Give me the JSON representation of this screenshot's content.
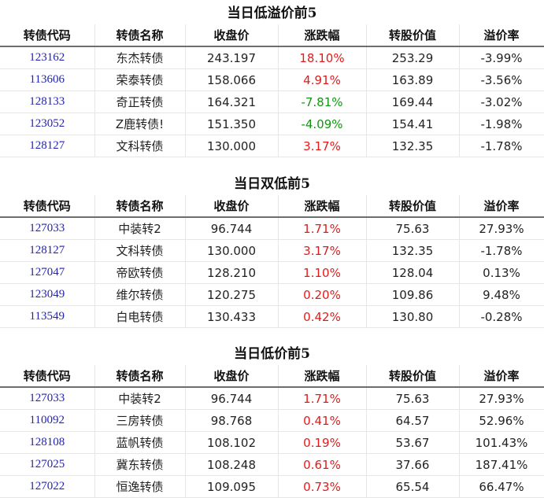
{
  "columns": [
    "转债代码",
    "转债名称",
    "收盘价",
    "涨跌幅",
    "转股价值",
    "溢价率"
  ],
  "sections": [
    {
      "title": "当日低溢价前5",
      "rows": [
        {
          "code": "123162",
          "name": "东杰转债",
          "close": "243.197",
          "change": "18.10%",
          "dir": "up",
          "conv_value": "253.29",
          "premium": "-3.99%"
        },
        {
          "code": "113606",
          "name": "荣泰转债",
          "close": "158.066",
          "change": "4.91%",
          "dir": "up",
          "conv_value": "163.89",
          "premium": "-3.56%"
        },
        {
          "code": "128133",
          "name": "奇正转债",
          "close": "164.321",
          "change": "-7.81%",
          "dir": "down",
          "conv_value": "169.44",
          "premium": "-3.02%"
        },
        {
          "code": "123052",
          "name": "Z鹿转债!",
          "close": "151.350",
          "change": "-4.09%",
          "dir": "down",
          "conv_value": "154.41",
          "premium": "-1.98%"
        },
        {
          "code": "128127",
          "name": "文科转债",
          "close": "130.000",
          "change": "3.17%",
          "dir": "up",
          "conv_value": "132.35",
          "premium": "-1.78%"
        }
      ]
    },
    {
      "title": "当日双低前5",
      "rows": [
        {
          "code": "127033",
          "name": "中装转2",
          "close": "96.744",
          "change": "1.71%",
          "dir": "up",
          "conv_value": "75.63",
          "premium": "27.93%"
        },
        {
          "code": "128127",
          "name": "文科转债",
          "close": "130.000",
          "change": "3.17%",
          "dir": "up",
          "conv_value": "132.35",
          "premium": "-1.78%"
        },
        {
          "code": "127047",
          "name": "帝欧转债",
          "close": "128.210",
          "change": "1.10%",
          "dir": "up",
          "conv_value": "128.04",
          "premium": "0.13%"
        },
        {
          "code": "123049",
          "name": "维尔转债",
          "close": "120.275",
          "change": "0.20%",
          "dir": "up",
          "conv_value": "109.86",
          "premium": "9.48%"
        },
        {
          "code": "113549",
          "name": "白电转债",
          "close": "130.433",
          "change": "0.42%",
          "dir": "up",
          "conv_value": "130.80",
          "premium": "-0.28%"
        }
      ]
    },
    {
      "title": "当日低价前5",
      "rows": [
        {
          "code": "127033",
          "name": "中装转2",
          "close": "96.744",
          "change": "1.71%",
          "dir": "up",
          "conv_value": "75.63",
          "premium": "27.93%"
        },
        {
          "code": "110092",
          "name": "三房转债",
          "close": "98.768",
          "change": "0.41%",
          "dir": "up",
          "conv_value": "64.57",
          "premium": "52.96%"
        },
        {
          "code": "128108",
          "name": "蓝帆转债",
          "close": "108.102",
          "change": "0.19%",
          "dir": "up",
          "conv_value": "53.67",
          "premium": "101.43%"
        },
        {
          "code": "127025",
          "name": "冀东转债",
          "close": "108.248",
          "change": "0.61%",
          "dir": "up",
          "conv_value": "37.66",
          "premium": "187.41%"
        },
        {
          "code": "127022",
          "name": "恒逸转债",
          "close": "109.095",
          "change": "0.73%",
          "dir": "up",
          "conv_value": "65.54",
          "premium": "66.47%"
        }
      ]
    }
  ]
}
